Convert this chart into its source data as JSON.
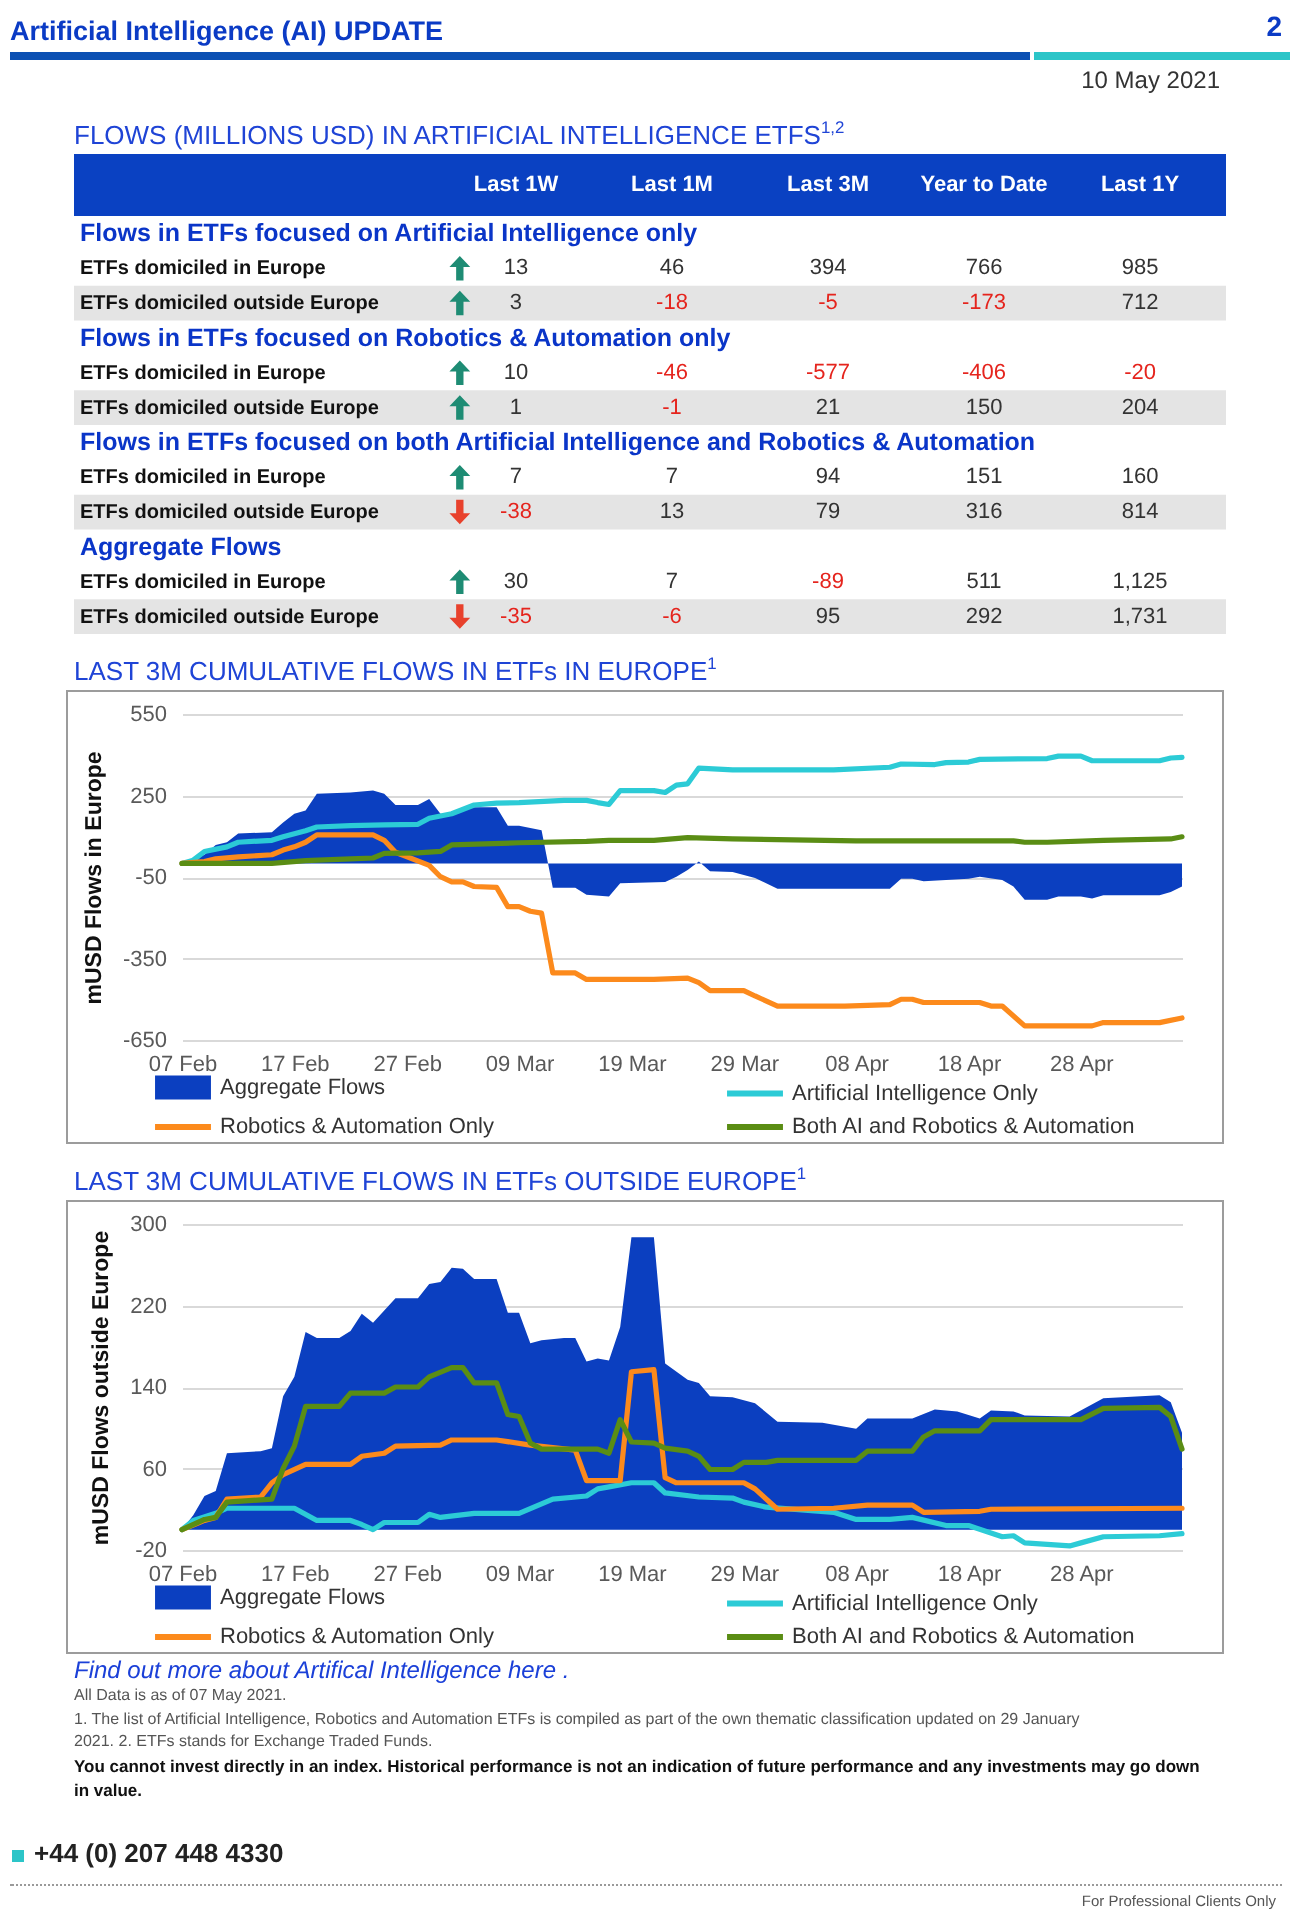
{
  "chart_data": [
    {
      "type": "heatmap",
      "title": "FLOWS (MILLIONS USD) IN ARTIFICIAL INTELLIGENCE ETFS$^{1,2}$",
      "annotations": [
        "Artificial Intelligence (AI) UPDATE",
        "2",
        "10 May 2021"
      ],
      "categories": [
        "Last 1W",
        "Last 1M",
        "Last 3M",
        "Year to Date",
        "Last 1Y"
      ],
      "y_categories": [
        "Flows in ETFs focused on Artificial Intelligence only",
        "ETFs domiciled in Europe",
        "ETFs domiciled outside Europe",
        "Flows in ETFs focused on Robotics & Automation only",
        "ETFs domiciled in Europe",
        "ETFs domiciled outside Europe",
        "Flows in ETFs focused on both Artificial Intelligence and Robotics & Automation",
        "ETFs domiciled in Europe",
        "ETFs domiciled outside Europe",
        "Aggregate Flows",
        "ETFs domiciled in Europe",
        "ETFs domiciled outside Europe"
      ],
      "cells": [
        [
          null,
          null,
          null,
          null,
          null
        ],
        [
          13,
          46,
          394,
          766,
          985
        ],
        [
          3,
          -18,
          -5,
          -173,
          712
        ],
        [
          null,
          null,
          null,
          null,
          null
        ],
        [
          10,
          -46,
          -577,
          -406,
          -20
        ],
        [
          1,
          -1,
          21,
          150,
          204
        ],
        [
          null,
          null,
          null,
          null,
          null
        ],
        [
          7,
          7,
          94,
          151,
          160
        ],
        [
          -38,
          13,
          79,
          316,
          814
        ],
        [
          null,
          null,
          null,
          null,
          null
        ],
        [
          30,
          7,
          -89,
          511,
          1125
        ],
        [
          -35,
          -6,
          95,
          292,
          1731
        ]
      ],
      "cell_labels": [
        [
          null,
          null,
          null,
          null,
          null
        ],
        [
          "13",
          "46",
          "394",
          "766",
          "985"
        ],
        [
          "3",
          "-18",
          "-5",
          "-173",
          "712"
        ],
        [
          null,
          null,
          null,
          null,
          null
        ],
        [
          "10",
          "-46",
          "-577",
          "-406",
          "-20"
        ],
        [
          "1",
          "-1",
          "21",
          "150",
          "204"
        ],
        [
          null,
          null,
          null,
          null,
          null
        ],
        [
          "7",
          "7",
          "94",
          "151",
          "160"
        ],
        [
          "-38",
          "13",
          "79",
          "316",
          "814"
        ],
        [
          null,
          null,
          null,
          null,
          null
        ],
        [
          "30",
          "7",
          "-89",
          "511",
          "1,125"
        ],
        [
          "-35",
          "-6",
          "95",
          "292",
          "1,731"
        ]
      ]
    },
    {
      "type": "line",
      "title": "LAST 3M CUMULATIVE FLOWS IN ETFs IN EUROPE$^{1}$",
      "ylabel": "mUSD Flows in Europe",
      "xlim": [
        "--02-07",
        "--05-07"
      ],
      "xticks": [
        {
          "value": "--02-07",
          "label": "07 Feb"
        },
        {
          "value": "--02-17",
          "label": "17 Feb"
        },
        {
          "value": "--02-27",
          "label": "27 Feb"
        },
        {
          "value": "--03-09",
          "label": "09 Mar"
        },
        {
          "value": "--03-19",
          "label": "19 Mar"
        },
        {
          "value": "--03-29",
          "label": "29 Mar"
        },
        {
          "value": "--04-08",
          "label": "08 Apr"
        },
        {
          "value": "--04-18",
          "label": "18 Apr"
        },
        {
          "value": "--04-28",
          "label": "28 Apr"
        }
      ],
      "ylim": [
        -650,
        550
      ],
      "yticks": [
        -650,
        -350,
        -50,
        250,
        550
      ],
      "grid": "y",
      "legend": "bottom",
      "series": [
        {
          "name": "Aggregate Flows",
          "type": "area",
          "color": "#0b3fc0",
          "x": [
            "--02-07",
            "--02-09",
            "--02-10",
            "--02-11",
            "--02-12",
            "--02-15",
            "--02-16",
            "--02-17",
            "--02-18",
            "--02-19",
            "--02-22",
            "--02-24",
            "--02-25",
            "--02-26",
            "--02-28",
            "--03-01",
            "--03-02",
            "--03-03",
            "--03-04",
            "--03-07",
            "--03-08",
            "--03-09",
            "--03-11",
            "--03-12",
            "--03-14",
            "--03-15",
            "--03-17",
            "--03-18",
            "--03-22",
            "--03-23",
            "--03-24",
            "--03-25",
            "--03-26",
            "--03-28",
            "--03-30",
            "--04-01",
            "--04-11",
            "--04-12",
            "--04-13",
            "--04-14",
            "--04-18",
            "--04-19",
            "--04-21",
            "--04-22",
            "--04-23",
            "--04-25",
            "--04-26",
            "--04-28",
            "--04-29",
            "--04-30",
            "--05-05",
            "--05-06",
            "--05-07"
          ],
          "values": [
            0,
            32,
            68,
            78,
            110,
            115,
            151,
            183,
            195,
            256,
            261,
            268,
            256,
            215,
            215,
            237,
            183,
            176,
            207,
            207,
            139,
            139,
            122,
            -90,
            -90,
            -115,
            -122,
            -73,
            -68,
            -49,
            -24,
            7,
            -29,
            -32,
            -54,
            -93,
            -93,
            -56,
            -56,
            -66,
            -56,
            -49,
            -61,
            -85,
            -134,
            -134,
            -122,
            -122,
            -129,
            -117,
            -117,
            -105,
            -85
          ]
        },
        {
          "name": "Artificial Intelligence Only",
          "color": "#2ccbd6",
          "x": [
            "--02-07",
            "--02-08",
            "--02-09",
            "--02-11",
            "--02-12",
            "--02-15",
            "--02-16",
            "--02-18",
            "--02-19",
            "--02-22",
            "--02-25",
            "--02-28",
            "--03-01",
            "--03-03",
            "--03-05",
            "--03-07",
            "--03-09",
            "--03-13",
            "--03-15",
            "--03-16",
            "--03-17",
            "--03-18",
            "--03-21",
            "--03-22",
            "--03-23",
            "--03-24",
            "--03-25",
            "--03-28",
            "--04-06",
            "--04-11",
            "--04-12",
            "--04-15",
            "--04-16",
            "--04-18",
            "--04-19",
            "--04-25",
            "--04-26",
            "--04-28",
            "--04-29",
            "--05-05",
            "--05-06",
            "--05-07"
          ],
          "values": [
            0,
            12,
            44,
            61,
            78,
            85,
            98,
            120,
            134,
            139,
            142,
            144,
            166,
            183,
            215,
            222,
            224,
            232,
            232,
            224,
            217,
            268,
            268,
            261,
            288,
            293,
            351,
            344,
            344,
            354,
            366,
            364,
            371,
            373,
            383,
            386,
            395,
            395,
            378,
            378,
            388,
            390
          ]
        },
        {
          "name": "Robotics & Automation Only",
          "color": "#fc8a1c",
          "x": [
            "--02-07",
            "--02-09",
            "--02-10",
            "--02-12",
            "--02-15",
            "--02-16",
            "--02-17",
            "--02-18",
            "--02-19",
            "--02-24",
            "--02-25",
            "--02-26",
            "--03-01",
            "--03-02",
            "--03-03",
            "--03-04",
            "--03-05",
            "--03-07",
            "--03-08",
            "--03-09",
            "--03-10",
            "--03-11",
            "--03-12",
            "--03-14",
            "--03-15",
            "--03-21",
            "--03-24",
            "--03-25",
            "--03-26",
            "--03-29",
            "--03-30",
            "--04-01",
            "--04-07",
            "--04-11",
            "--04-12",
            "--04-13",
            "--04-14",
            "--04-19",
            "--04-20",
            "--04-21",
            "--04-23",
            "--04-29",
            "--04-30",
            "--05-05",
            "--05-07"
          ],
          "values": [
            0,
            7,
            17,
            24,
            32,
            49,
            61,
            78,
            105,
            105,
            85,
            41,
            -7,
            -49,
            -68,
            -68,
            -85,
            -88,
            -159,
            -159,
            -176,
            -183,
            -403,
            -403,
            -427,
            -427,
            -422,
            -439,
            -468,
            -468,
            -488,
            -525,
            -525,
            -520,
            -500,
            -500,
            -512,
            -512,
            -525,
            -525,
            -598,
            -598,
            -586,
            -586,
            -569
          ]
        },
        {
          "name": "Both AI and Robotics & Automation",
          "color": "#5a8d14",
          "x": [
            "--02-07",
            "--02-15",
            "--02-18",
            "--02-22",
            "--02-24",
            "--02-25",
            "--02-28",
            "--03-02",
            "--03-03",
            "--03-09",
            "--03-15",
            "--03-17",
            "--03-21",
            "--03-24",
            "--03-28",
            "--04-08",
            "--04-22",
            "--04-23",
            "--04-25",
            "--04-30",
            "--05-06",
            "--05-07"
          ],
          "values": [
            0,
            0,
            10,
            17,
            20,
            37,
            39,
            44,
            68,
            76,
            81,
            85,
            85,
            95,
            90,
            83,
            83,
            78,
            78,
            85,
            90,
            98
          ]
        }
      ]
    },
    {
      "type": "line",
      "title": "LAST 3M CUMULATIVE FLOWS IN ETFs OUTSIDE EUROPE$^{1}$",
      "ylabel": "mUSD Flows outside Europe",
      "xlim": [
        "--02-07",
        "--05-07"
      ],
      "xticks": [
        {
          "value": "--02-07",
          "label": "07 Feb"
        },
        {
          "value": "--02-17",
          "label": "17 Feb"
        },
        {
          "value": "--02-27",
          "label": "27 Feb"
        },
        {
          "value": "--03-09",
          "label": "09 Mar"
        },
        {
          "value": "--03-19",
          "label": "19 Mar"
        },
        {
          "value": "--03-29",
          "label": "29 Mar"
        },
        {
          "value": "--04-08",
          "label": "08 Apr"
        },
        {
          "value": "--04-18",
          "label": "18 Apr"
        },
        {
          "value": "--04-28",
          "label": "28 Apr"
        }
      ],
      "ylim": [
        -20,
        300
      ],
      "yticks": [
        -20,
        60,
        140,
        220,
        300
      ],
      "grid": "y",
      "legend": "bottom",
      "annotations": [
        "Find out more about Artifical Intelligence here .",
        "All Data is as of 07 May 2021.",
        "1. The list of Artificial Intelligence, Robotics and Automation ETFs is compiled as part of the own thematic classification updated on 29 January 2021. 2. ETFs stands for Exchange Traded Funds.",
        "You cannot invest directly in an index. Historical performance is not an indication of future performance and any investments may go down in value.",
        "+44 (0) 207 448 4330",
        "For Professional Clients Only"
      ],
      "series": [
        {
          "name": "Aggregate Flows",
          "type": "area",
          "color": "#0b3fc0",
          "x": [
            "--02-07",
            "--02-08",
            "--02-09",
            "--02-10",
            "--02-11",
            "--02-14",
            "--02-15",
            "--02-16",
            "--02-17",
            "--02-18",
            "--02-19",
            "--02-21",
            "--02-22",
            "--02-23",
            "--02-24",
            "--02-26",
            "--02-28",
            "--03-01",
            "--03-02",
            "--03-03",
            "--03-04",
            "--03-05",
            "--03-07",
            "--03-08",
            "--03-09",
            "--03-10",
            "--03-11",
            "--03-13",
            "--03-14",
            "--03-15",
            "--03-16",
            "--03-17",
            "--03-18",
            "--03-19",
            "--03-21",
            "--03-22",
            "--03-24",
            "--03-25",
            "--03-26",
            "--03-28",
            "--03-30",
            "--04-01",
            "--04-05",
            "--04-08",
            "--04-09",
            "--04-13",
            "--04-15",
            "--04-17",
            "--04-19",
            "--04-20",
            "--04-22",
            "--04-23",
            "--04-27",
            "--04-30",
            "--05-05",
            "--05-06",
            "--05-07"
          ],
          "values": [
            0,
            14,
            33,
            38,
            75,
            77,
            80,
            131,
            150,
            194,
            188,
            188,
            195,
            212,
            203,
            227,
            227,
            241,
            243,
            257,
            256,
            246,
            246,
            213,
            213,
            183,
            186,
            188,
            188,
            165,
            168,
            166,
            199,
            287,
            287,
            163,
            147,
            144,
            131,
            130,
            124,
            106,
            105,
            99,
            109,
            109,
            118,
            116,
            109,
            117,
            116,
            112,
            111,
            129,
            132,
            125,
            95
          ]
        },
        {
          "name": "Artificial Intelligence Only",
          "color": "#2ccbd6",
          "x": [
            "--02-07",
            "--02-08",
            "--02-10",
            "--02-11",
            "--02-17",
            "--02-19",
            "--02-22",
            "--02-23",
            "--02-24",
            "--02-25",
            "--02-28",
            "--03-01",
            "--03-02",
            "--03-05",
            "--03-09",
            "--03-12",
            "--03-15",
            "--03-16",
            "--03-17",
            "--03-19",
            "--03-21",
            "--03-22",
            "--03-25",
            "--03-28",
            "--03-29",
            "--03-31",
            "--04-06",
            "--04-08",
            "--04-11",
            "--04-13",
            "--04-16",
            "--04-18",
            "--04-21",
            "--04-22",
            "--04-23",
            "--04-27",
            "--04-28",
            "--04-30",
            "--05-05",
            "--05-07"
          ],
          "values": [
            0,
            9,
            16,
            21,
            21,
            9,
            9,
            5,
            0,
            7,
            7,
            15,
            12,
            16,
            16,
            30,
            33,
            40,
            42,
            46,
            46,
            36,
            32,
            31,
            27,
            22,
            17,
            10,
            10,
            12,
            4,
            4,
            -7,
            -6,
            -13,
            -16,
            -13,
            -7,
            -6,
            -4
          ]
        },
        {
          "name": "Robotics & Automation Only",
          "color": "#fc8a1c",
          "x": [
            "--02-07",
            "--02-09",
            "--02-10",
            "--02-11",
            "--02-14",
            "--02-15",
            "--02-16",
            "--02-18",
            "--02-22",
            "--02-23",
            "--02-25",
            "--02-26",
            "--03-02",
            "--03-03",
            "--03-07",
            "--03-10",
            "--03-14",
            "--03-15",
            "--03-18",
            "--03-19",
            "--03-21",
            "--03-22",
            "--03-23",
            "--03-29",
            "--03-30",
            "--04-01",
            "--04-06",
            "--04-09",
            "--04-13",
            "--04-14",
            "--04-19",
            "--04-20",
            "--05-07"
          ],
          "values": [
            0,
            9,
            12,
            30,
            32,
            46,
            54,
            64,
            64,
            72,
            75,
            82,
            83,
            88,
            88,
            83,
            78,
            48,
            48,
            155,
            157,
            51,
            46,
            46,
            40,
            20,
            21,
            24,
            24,
            17,
            18,
            20,
            21
          ]
        },
        {
          "name": "Both AI and Robotics & Automation",
          "color": "#5a8d14",
          "x": [
            "--02-07",
            "--02-09",
            "--02-10",
            "--02-11",
            "--02-15",
            "--02-16",
            "--02-17",
            "--02-18",
            "--02-21",
            "--02-22",
            "--02-25",
            "--02-26",
            "--02-28",
            "--03-01",
            "--03-03",
            "--03-04",
            "--03-05",
            "--03-07",
            "--03-08",
            "--03-09",
            "--03-10",
            "--03-11",
            "--03-16",
            "--03-17",
            "--03-18",
            "--03-19",
            "--03-21",
            "--03-22",
            "--03-24",
            "--03-25",
            "--03-26",
            "--03-28",
            "--03-29",
            "--03-31",
            "--04-01",
            "--04-08",
            "--04-09",
            "--04-13",
            "--04-14",
            "--04-15",
            "--04-19",
            "--04-20",
            "--04-28",
            "--04-30",
            "--05-05",
            "--05-06",
            "--05-07"
          ],
          "values": [
            0,
            10,
            12,
            27,
            30,
            60,
            82,
            121,
            121,
            134,
            134,
            140,
            140,
            150,
            159,
            159,
            144,
            144,
            113,
            111,
            85,
            79,
            79,
            75,
            108,
            86,
            85,
            80,
            77,
            72,
            59,
            59,
            66,
            66,
            68,
            68,
            77,
            77,
            91,
            97,
            97,
            108,
            108,
            119,
            120,
            111,
            79
          ]
        }
      ]
    }
  ]
}
